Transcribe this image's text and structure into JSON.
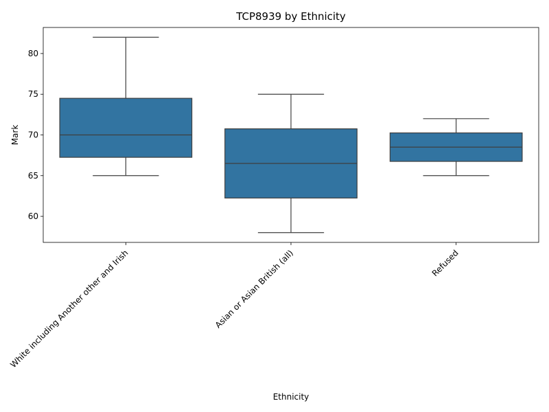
{
  "chart_data": {
    "type": "box",
    "title": "TCP8939 by Ethnicity",
    "xlabel": "Ethnicity",
    "ylabel": "Mark",
    "ylim": [
      56.8,
      83.2
    ],
    "yticks": [
      60,
      65,
      70,
      75,
      80
    ],
    "categories": [
      "White including Another other and Irish",
      "Asian or Asian British (all)",
      "Refused"
    ],
    "boxes": [
      {
        "category": "White including Another other and Irish",
        "whisker_low": 65,
        "q1": 67.25,
        "median": 70,
        "q3": 74.5,
        "whisker_high": 82
      },
      {
        "category": "Asian or Asian British (all)",
        "whisker_low": 58,
        "q1": 62.25,
        "median": 66.5,
        "q3": 70.75,
        "whisker_high": 75
      },
      {
        "category": "Refused",
        "whisker_low": 65,
        "q1": 66.75,
        "median": 68.5,
        "q3": 70.25,
        "whisker_high": 72
      }
    ],
    "box_color": "#3274a1",
    "line_color": "#3f3f3f",
    "grid": false,
    "legend": "none"
  }
}
